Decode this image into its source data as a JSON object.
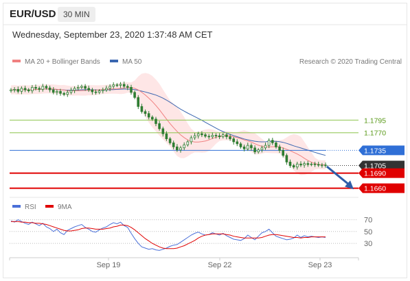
{
  "header": {
    "symbol": "EUR/USD",
    "timeframe": "30 MIN",
    "datetime": "Wednesday, September 23, 2020 1:37:48 AM CET"
  },
  "legend": {
    "ma20_label": "MA 20 + Bollinger Bands",
    "ma50_label": "MA 50",
    "credit": "Research © 2020 Trading Central",
    "rsi_label": "RSI",
    "rsi9_label": "9MA"
  },
  "colors": {
    "candle": "#2e7d32",
    "ma20": "#f08080",
    "band_fill": "#fddede",
    "ma50": "#3a66b0",
    "support_line": "#e00000",
    "resistance_line": "#8bc34a",
    "pivot": "#2f6fd6",
    "last_price": "#333333",
    "rsi": "#4a6fd8",
    "rsi9": "#e00000",
    "arrow": "#2e5da8"
  },
  "chart_data": [
    {
      "type": "candlestick",
      "title": "",
      "x_ticks": [
        "Sep 19",
        "Sep 22",
        "Sep 23"
      ],
      "ylim": [
        1.165,
        1.19
      ],
      "series": [
        {
          "name": "MA 20 + Bollinger Bands",
          "kind": "ma_band",
          "color": "#f08080"
        },
        {
          "name": "MA 50",
          "kind": "ma",
          "color": "#3a66b0"
        }
      ],
      "closes": [
        1.1855,
        1.1856,
        1.1852,
        1.1858,
        1.1855,
        1.1853,
        1.186,
        1.1858,
        1.1856,
        1.1862,
        1.1859,
        1.1855,
        1.185,
        1.1852,
        1.1848,
        1.1846,
        1.185,
        1.1854,
        1.1858,
        1.186,
        1.1862,
        1.1858,
        1.1855,
        1.1851,
        1.185,
        1.1853,
        1.1855,
        1.1858,
        1.1862,
        1.1865,
        1.1864,
        1.1866,
        1.1862,
        1.186,
        1.185,
        1.184,
        1.1822,
        1.1812,
        1.1808,
        1.1801,
        1.1797,
        1.1788,
        1.1778,
        1.1768,
        1.1758,
        1.175,
        1.1742,
        1.1736,
        1.174,
        1.1746,
        1.1752,
        1.176,
        1.1764,
        1.1768,
        1.1766,
        1.1763,
        1.1762,
        1.1765,
        1.1764,
        1.1762,
        1.1766,
        1.1762,
        1.1758,
        1.1752,
        1.1748,
        1.1742,
        1.1738,
        1.1745,
        1.174,
        1.1732,
        1.1736,
        1.174,
        1.1745,
        1.1755,
        1.175,
        1.1742,
        1.1735,
        1.1725,
        1.1712,
        1.1705,
        1.1702,
        1.1708,
        1.1706,
        1.1709,
        1.1707,
        1.1708,
        1.1707,
        1.1706,
        1.1706,
        1.1705
      ],
      "levels": [
        {
          "label": "1.1795",
          "value": 1.1795,
          "kind": "resistance"
        },
        {
          "label": "1.1770",
          "value": 1.177,
          "kind": "resistance"
        },
        {
          "label": "1.1735",
          "value": 1.1735,
          "kind": "pivot"
        },
        {
          "label": "1.1705",
          "value": 1.1705,
          "kind": "last"
        },
        {
          "label": "1.1690",
          "value": 1.169,
          "kind": "support"
        },
        {
          "label": "1.1660",
          "value": 1.166,
          "kind": "support"
        }
      ],
      "forecast_arrow": {
        "from": 1.1703,
        "to": 1.1662
      }
    },
    {
      "type": "line",
      "title": "",
      "ylim": [
        15,
        80
      ],
      "y_ticks": [
        70,
        50,
        30
      ],
      "series": [
        {
          "name": "RSI",
          "color": "#4a6fd8",
          "values": [
            68,
            66,
            70,
            67,
            64,
            62,
            66,
            63,
            60,
            64,
            58,
            55,
            50,
            54,
            48,
            45,
            52,
            55,
            58,
            60,
            62,
            57,
            54,
            50,
            49,
            53,
            56,
            58,
            62,
            65,
            63,
            66,
            60,
            57,
            47,
            38,
            30,
            24,
            22,
            20,
            21,
            19,
            18,
            20,
            22,
            25,
            27,
            28,
            32,
            36,
            40,
            44,
            47,
            49,
            46,
            44,
            45,
            48,
            46,
            44,
            47,
            43,
            40,
            37,
            36,
            35,
            38,
            44,
            40,
            36,
            42,
            48,
            50,
            54,
            48,
            42,
            40,
            38,
            36,
            37,
            39,
            44,
            40,
            43,
            41,
            42,
            41,
            40,
            41,
            40
          ]
        },
        {
          "name": "9MA",
          "color": "#e00000",
          "values": [
            67,
            67,
            67,
            66,
            66,
            65,
            65,
            64,
            64,
            63,
            62,
            60,
            58,
            56,
            54,
            52,
            51,
            51,
            52,
            53,
            55,
            56,
            56,
            55,
            54,
            54,
            54,
            55,
            56,
            58,
            59,
            61,
            61,
            60,
            57,
            53,
            48,
            43,
            38,
            34,
            30,
            27,
            24,
            22,
            21,
            21,
            21,
            22,
            24,
            26,
            29,
            32,
            35,
            39,
            42,
            44,
            45,
            46,
            46,
            46,
            46,
            45,
            44,
            42,
            41,
            40,
            39,
            39,
            39,
            39,
            39,
            40,
            42,
            44,
            45,
            45,
            44,
            43,
            42,
            41,
            40,
            40,
            39,
            40,
            40,
            41,
            41,
            41,
            41,
            41
          ]
        }
      ]
    }
  ]
}
